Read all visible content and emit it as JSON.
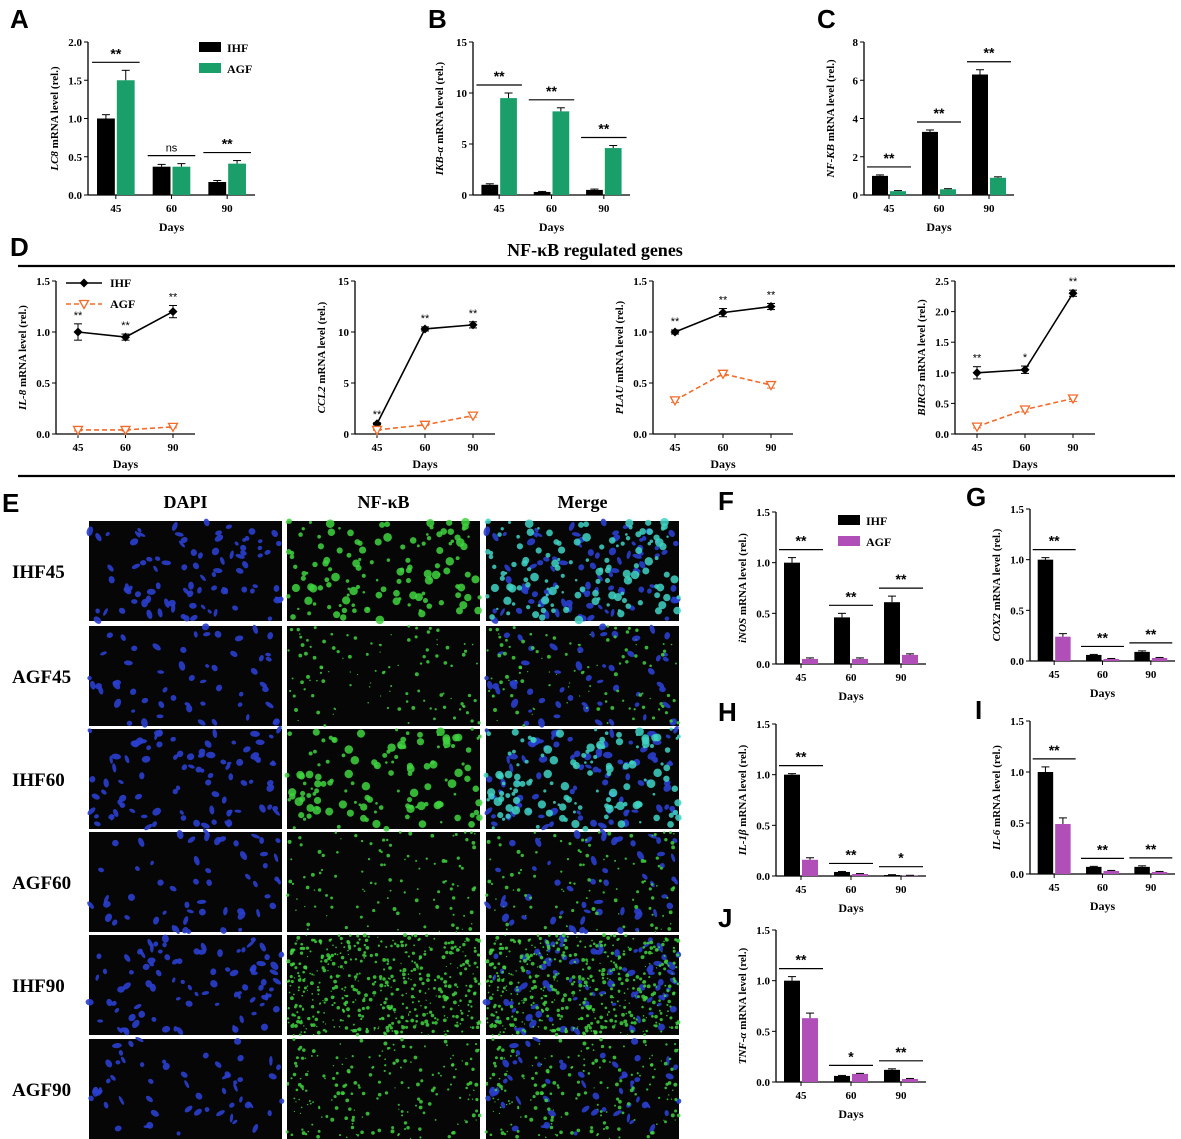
{
  "colors": {
    "ihf": "#000000",
    "agf_green": "#1a9e6a",
    "agf_purple": "#b14fb8",
    "agf_line": "#f26b2a",
    "dapi": "#2b3fcf",
    "nfkb": "#3fd43f"
  },
  "legend_bar": {
    "ihf": "IHF",
    "agf": "AGF"
  },
  "legend_line": {
    "ihf": "IHF",
    "agf": "AGF"
  },
  "section_d_title": "NF-κB regulated genes",
  "image_panel": {
    "label": "E",
    "columns": [
      "DAPI",
      "NF-κB",
      "Merge"
    ],
    "rows": [
      "IHF45",
      "AGF45",
      "IHF60",
      "AGF60",
      "IHF90",
      "AGF90"
    ]
  },
  "chart_data": [
    {
      "id": "A",
      "type": "bar",
      "label": "A",
      "gene": "LC8",
      "ylabel_suffix": " mRNA level (rel.)",
      "xlabel": "Days",
      "categories": [
        "45",
        "60",
        "90"
      ],
      "ylim": [
        0,
        2.0
      ],
      "yticks": [
        "0.0",
        "0.5",
        "1.0",
        "1.5",
        "2.0"
      ],
      "series": [
        {
          "name": "IHF",
          "values": [
            1.0,
            0.37,
            0.17
          ],
          "err": [
            0.05,
            0.03,
            0.02
          ]
        },
        {
          "name": "AGF",
          "values": [
            1.5,
            0.37,
            0.41
          ],
          "err": [
            0.13,
            0.04,
            0.04
          ]
        }
      ],
      "significance": [
        "**",
        "ns",
        "**"
      ]
    },
    {
      "id": "B",
      "type": "bar",
      "label": "B",
      "gene": "IKB-α",
      "ylabel_suffix": " mRNA level (rel.)",
      "xlabel": "Days",
      "categories": [
        "45",
        "60",
        "90"
      ],
      "ylim": [
        0,
        15
      ],
      "yticks": [
        "0",
        "5",
        "10",
        "15"
      ],
      "series": [
        {
          "name": "IHF",
          "values": [
            1.0,
            0.3,
            0.5
          ],
          "err": [
            0.1,
            0.05,
            0.08
          ]
        },
        {
          "name": "AGF",
          "values": [
            9.5,
            8.2,
            4.6
          ],
          "err": [
            0.5,
            0.35,
            0.25
          ]
        }
      ],
      "significance": [
        "**",
        "**",
        "**"
      ]
    },
    {
      "id": "C",
      "type": "bar",
      "label": "C",
      "gene": "NF-KB",
      "ylabel_suffix": " mRNA level (rel.)",
      "xlabel": "Days",
      "categories": [
        "45",
        "60",
        "90"
      ],
      "ylim": [
        0,
        8
      ],
      "yticks": [
        "0",
        "2",
        "4",
        "6",
        "8"
      ],
      "series": [
        {
          "name": "IHF",
          "values": [
            1.0,
            3.3,
            6.3
          ],
          "err": [
            0.05,
            0.1,
            0.25
          ]
        },
        {
          "name": "AGF",
          "values": [
            0.2,
            0.3,
            0.9
          ],
          "err": [
            0.03,
            0.03,
            0.05
          ]
        }
      ],
      "significance": [
        "**",
        "**",
        "**"
      ]
    },
    {
      "id": "D1",
      "type": "line",
      "gene": "IL-8",
      "ylabel_suffix": " mRNA level (rel.)",
      "xlabel": "Days",
      "categories": [
        "45",
        "60",
        "90"
      ],
      "ylim": [
        0,
        1.5
      ],
      "yticks": [
        "0.0",
        "0.5",
        "1.0",
        "1.5"
      ],
      "series": [
        {
          "name": "IHF",
          "values": [
            1.0,
            0.95,
            1.2
          ],
          "err": [
            0.08,
            0.03,
            0.06
          ]
        },
        {
          "name": "AGF",
          "values": [
            0.04,
            0.04,
            0.07
          ],
          "err": [
            0.01,
            0.01,
            0.01
          ]
        }
      ],
      "significance": [
        "**",
        "**",
        "**"
      ]
    },
    {
      "id": "D2",
      "type": "line",
      "gene": "CCL2",
      "ylabel_suffix": " mRNA level (rel.)",
      "xlabel": "Days",
      "categories": [
        "45",
        "60",
        "90"
      ],
      "ylim": [
        0,
        15
      ],
      "yticks": [
        "0",
        "5",
        "10",
        "15"
      ],
      "series": [
        {
          "name": "IHF",
          "values": [
            1.0,
            10.3,
            10.7
          ],
          "err": [
            0.1,
            0.2,
            0.3
          ]
        },
        {
          "name": "AGF",
          "values": [
            0.4,
            0.9,
            1.8
          ],
          "err": [
            0.05,
            0.08,
            0.15
          ]
        }
      ],
      "significance": [
        "**",
        "**",
        "**"
      ]
    },
    {
      "id": "D3",
      "type": "line",
      "gene": "PLAU",
      "ylabel_suffix": " mRNA level (rel.)",
      "xlabel": "Days",
      "categories": [
        "45",
        "60",
        "90"
      ],
      "ylim": [
        0,
        1.5
      ],
      "yticks": [
        "0.0",
        "0.5",
        "1.0",
        "1.5"
      ],
      "series": [
        {
          "name": "IHF",
          "values": [
            1.0,
            1.19,
            1.25
          ],
          "err": [
            0.02,
            0.04,
            0.03
          ]
        },
        {
          "name": "AGF",
          "values": [
            0.33,
            0.59,
            0.48
          ],
          "err": [
            0.02,
            0.02,
            0.03
          ]
        }
      ],
      "significance": [
        "**",
        "**",
        "**"
      ]
    },
    {
      "id": "D4",
      "type": "line",
      "gene": "BIRC3",
      "ylabel_suffix": " mRNA level (rel.)",
      "xlabel": "Days",
      "categories": [
        "45",
        "60",
        "90"
      ],
      "ylim": [
        0,
        2.5
      ],
      "yticks": [
        "0.0",
        "0.5",
        "1.0",
        "1.5",
        "2.0",
        "2.5"
      ],
      "series": [
        {
          "name": "IHF",
          "values": [
            1.0,
            1.05,
            2.3
          ],
          "err": [
            0.1,
            0.06,
            0.05
          ]
        },
        {
          "name": "AGF",
          "values": [
            0.12,
            0.4,
            0.58
          ],
          "err": [
            0.02,
            0.04,
            0.05
          ]
        }
      ],
      "significance": [
        "**",
        "*",
        "**"
      ]
    },
    {
      "id": "F",
      "type": "bar",
      "label": "F",
      "gene": "iNOS",
      "ylabel_suffix": " mRNA level (rel.)",
      "xlabel": "Days",
      "categories": [
        "45",
        "60",
        "90"
      ],
      "ylim": [
        0,
        1.5
      ],
      "yticks": [
        "0.0",
        "0.5",
        "1.0",
        "1.5"
      ],
      "series": [
        {
          "name": "IHF",
          "values": [
            1.0,
            0.46,
            0.61
          ],
          "err": [
            0.05,
            0.04,
            0.06
          ]
        },
        {
          "name": "AGF",
          "values": [
            0.05,
            0.05,
            0.09
          ],
          "err": [
            0.01,
            0.01,
            0.01
          ]
        }
      ],
      "significance": [
        "**",
        "**",
        "**"
      ]
    },
    {
      "id": "G",
      "type": "bar",
      "label": "G",
      "gene": "COX2",
      "ylabel_suffix": " mRNA level (rel.)",
      "xlabel": "Days",
      "categories": [
        "45",
        "60",
        "90"
      ],
      "ylim": [
        0,
        1.5
      ],
      "yticks": [
        "0.0",
        "0.5",
        "1.0",
        "1.5"
      ],
      "series": [
        {
          "name": "IHF",
          "values": [
            1.0,
            0.06,
            0.09
          ],
          "err": [
            0.02,
            0.005,
            0.01
          ]
        },
        {
          "name": "AGF",
          "values": [
            0.24,
            0.02,
            0.03
          ],
          "err": [
            0.03,
            0.005,
            0.005
          ]
        }
      ],
      "significance": [
        "**",
        "**",
        "**"
      ]
    },
    {
      "id": "H",
      "type": "bar",
      "label": "H",
      "gene": "IL-1β",
      "ylabel_suffix": " mRNA level (rel.)",
      "xlabel": "Days",
      "categories": [
        "45",
        "60",
        "90"
      ],
      "ylim": [
        0,
        1.5
      ],
      "yticks": [
        "0.0",
        "0.5",
        "1.0",
        "1.5"
      ],
      "series": [
        {
          "name": "IHF",
          "values": [
            1.0,
            0.04,
            0.01
          ],
          "err": [
            0.01,
            0.005,
            0.003
          ]
        },
        {
          "name": "AGF",
          "values": [
            0.16,
            0.02,
            0.005
          ],
          "err": [
            0.02,
            0.004,
            0.002
          ]
        }
      ],
      "significance": [
        "**",
        "**",
        "*"
      ]
    },
    {
      "id": "I",
      "type": "bar",
      "label": "I",
      "gene": "IL-6",
      "ylabel_suffix": " mRNA level (rel.)",
      "xlabel": "Days",
      "categories": [
        "45",
        "60",
        "90"
      ],
      "ylim": [
        0,
        1.5
      ],
      "yticks": [
        "0.0",
        "0.5",
        "1.0",
        "1.5"
      ],
      "series": [
        {
          "name": "IHF",
          "values": [
            1.0,
            0.07,
            0.07
          ],
          "err": [
            0.05,
            0.005,
            0.01
          ]
        },
        {
          "name": "AGF",
          "values": [
            0.49,
            0.03,
            0.02
          ],
          "err": [
            0.06,
            0.005,
            0.005
          ]
        }
      ],
      "significance": [
        "**",
        "**",
        "**"
      ]
    },
    {
      "id": "J",
      "type": "bar",
      "label": "J",
      "gene": "TNF-α",
      "ylabel_suffix": " mRNA level (rel.)",
      "xlabel": "Days",
      "categories": [
        "45",
        "60",
        "90"
      ],
      "ylim": [
        0,
        1.5
      ],
      "yticks": [
        "0.0",
        "0.5",
        "1.0",
        "1.5"
      ],
      "series": [
        {
          "name": "IHF",
          "values": [
            1.0,
            0.06,
            0.12
          ],
          "err": [
            0.04,
            0.005,
            0.01
          ]
        },
        {
          "name": "AGF",
          "values": [
            0.63,
            0.08,
            0.03
          ],
          "err": [
            0.05,
            0.005,
            0.005
          ]
        }
      ],
      "significance": [
        "**",
        "*",
        "**"
      ]
    }
  ]
}
